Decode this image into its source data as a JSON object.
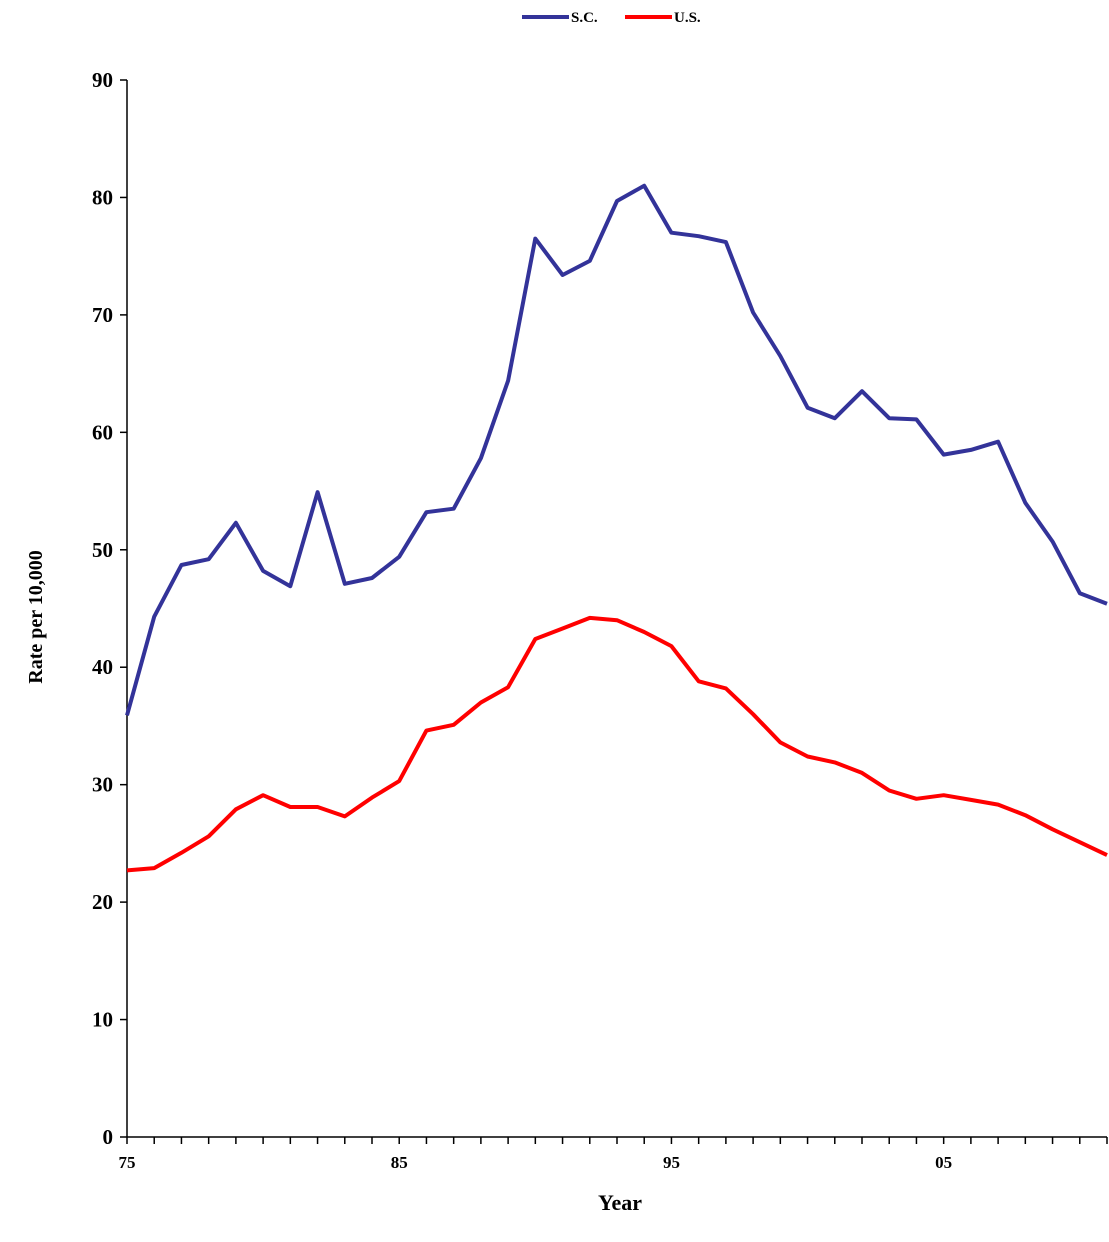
{
  "chart_data": {
    "type": "line",
    "title": "",
    "xlabel": "Year",
    "ylabel": "Rate per 10,000",
    "x": [
      1975,
      1976,
      1977,
      1978,
      1979,
      1980,
      1981,
      1982,
      1983,
      1984,
      1985,
      1986,
      1987,
      1988,
      1989,
      1990,
      1991,
      1992,
      1993,
      1994,
      1995,
      1996,
      1997,
      1998,
      1999,
      2000,
      2001,
      2002,
      2003,
      2004,
      2005,
      2006,
      2007,
      2008,
      2009,
      2010,
      2011
    ],
    "xlim": [
      1975,
      2011
    ],
    "x_ticks": [
      1975,
      1985,
      1995,
      2005
    ],
    "x_tick_labels": [
      "75",
      "85",
      "95",
      "05"
    ],
    "ylim": [
      0,
      90
    ],
    "y_ticks": [
      0,
      10,
      20,
      30,
      40,
      50,
      60,
      70,
      80,
      90
    ],
    "y_tick_labels": [
      "0",
      "10",
      "20",
      "30",
      "40",
      "50",
      "60",
      "70",
      "80",
      "90"
    ],
    "grid": false,
    "legend_position": "top-center",
    "series": [
      {
        "name": "S.C.",
        "color": "#333399",
        "values": [
          35.9,
          44.3,
          48.7,
          49.2,
          52.3,
          48.2,
          46.9,
          54.9,
          47.1,
          47.6,
          49.4,
          53.2,
          53.5,
          57.8,
          64.4,
          76.5,
          73.4,
          74.6,
          79.7,
          81.0,
          77.0,
          76.7,
          76.2,
          70.2,
          66.5,
          62.1,
          61.2,
          63.5,
          61.2,
          61.1,
          58.1,
          58.5,
          59.2,
          54.0,
          50.7,
          46.3,
          45.4
        ]
      },
      {
        "name": "U.S.",
        "color": "#ff0000",
        "values": [
          22.7,
          22.9,
          24.2,
          25.6,
          27.9,
          29.1,
          28.1,
          28.1,
          27.3,
          28.9,
          30.3,
          34.6,
          35.1,
          37.0,
          38.3,
          42.4,
          43.3,
          44.2,
          44.0,
          43.0,
          41.8,
          38.8,
          38.2,
          36.0,
          33.6,
          32.4,
          31.9,
          31.0,
          29.5,
          28.8,
          29.1,
          28.7,
          28.3,
          27.4,
          26.2,
          25.1,
          24.0
        ]
      }
    ]
  }
}
